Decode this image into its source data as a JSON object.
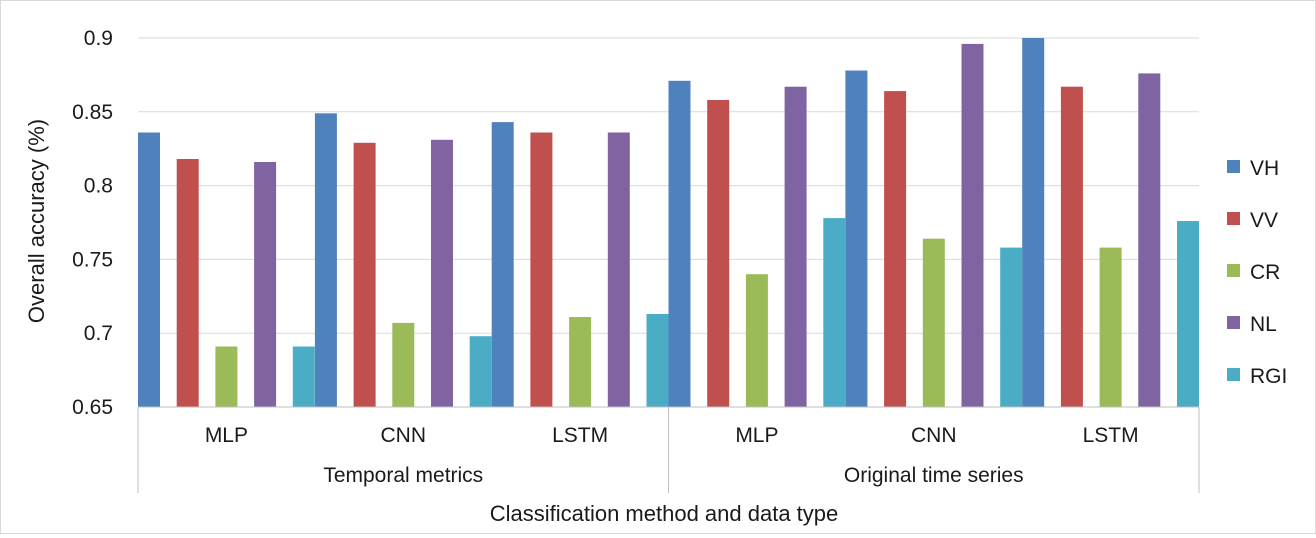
{
  "chart_data": {
    "type": "bar",
    "title": "",
    "xlabel": "Classification method and data type",
    "ylabel": "Overall accuracy (%)",
    "ylim": [
      0.65,
      0.9
    ],
    "yticks": [
      "0.65",
      "0.7",
      "0.75",
      "0.8",
      "0.85",
      "0.9"
    ],
    "grid": true,
    "legend_position": "right",
    "groups": [
      {
        "label": "Temporal metrics",
        "categories": [
          "MLP",
          "CNN",
          "LSTM"
        ]
      },
      {
        "label": "Original time series",
        "categories": [
          "MLP",
          "CNN",
          "LSTM"
        ]
      }
    ],
    "categories": [
      "MLP",
      "CNN",
      "LSTM",
      "MLP",
      "CNN",
      "LSTM"
    ],
    "series": [
      {
        "name": "VH",
        "color": "#4f81bd",
        "values": [
          0.836,
          0.849,
          0.843,
          0.871,
          0.878,
          0.9
        ]
      },
      {
        "name": "VV",
        "color": "#c0504d",
        "values": [
          0.818,
          0.829,
          0.836,
          0.858,
          0.864,
          0.867
        ]
      },
      {
        "name": "CR",
        "color": "#9bbb59",
        "values": [
          0.691,
          0.707,
          0.711,
          0.74,
          0.764,
          0.758
        ]
      },
      {
        "name": "NL",
        "color": "#8064a2",
        "values": [
          0.816,
          0.831,
          0.836,
          0.867,
          0.896,
          0.876
        ]
      },
      {
        "name": "RGI",
        "color": "#4bacc6",
        "values": [
          0.691,
          0.698,
          0.713,
          0.778,
          0.758,
          0.776
        ]
      }
    ]
  }
}
